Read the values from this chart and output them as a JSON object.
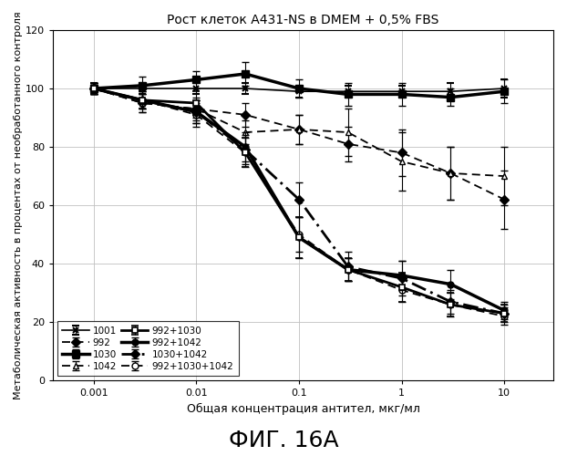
{
  "title": "Рост клеток A431-NS в DMEM + 0,5% FBS",
  "xlabel": "Общая концентрация антител, мкг/мл",
  "ylabel": "Метаболическая активность в процентах от необработанного контроля",
  "fig_label": "ФИГ. 16А",
  "xlim": [
    0.0004,
    30
  ],
  "ylim": [
    0,
    120
  ],
  "yticks": [
    0,
    20,
    40,
    60,
    80,
    100,
    120
  ],
  "xticks": [
    0.001,
    0.01,
    0.1,
    1,
    10
  ],
  "xtick_labels": [
    "0.001",
    "0.01",
    "0.1",
    "1",
    "10"
  ],
  "series": {
    "1001": {
      "x": [
        0.001,
        0.003,
        0.01,
        0.03,
        0.1,
        0.3,
        1,
        3,
        10
      ],
      "y": [
        100,
        100,
        100,
        100,
        99,
        99,
        99,
        99,
        100
      ],
      "yerr": [
        2,
        2,
        2,
        2,
        2,
        2,
        2,
        3,
        3
      ]
    },
    "1030": {
      "x": [
        0.001,
        0.003,
        0.01,
        0.03,
        0.1,
        0.3,
        1,
        3,
        10
      ],
      "y": [
        100,
        101,
        103,
        105,
        100,
        98,
        98,
        97,
        99
      ],
      "yerr": [
        2,
        3,
        3,
        4,
        3,
        4,
        4,
        3,
        4
      ]
    },
    "992+1030": {
      "x": [
        0.001,
        0.003,
        0.01,
        0.03,
        0.1,
        0.3,
        1,
        3,
        10
      ],
      "y": [
        100,
        96,
        95,
        78,
        49,
        38,
        32,
        26,
        23
      ],
      "yerr": [
        2,
        3,
        4,
        5,
        7,
        4,
        5,
        4,
        3
      ]
    },
    "1030+1042": {
      "x": [
        0.001,
        0.003,
        0.01,
        0.03,
        0.1,
        0.3,
        1,
        3,
        10
      ],
      "y": [
        100,
        96,
        92,
        79,
        62,
        39,
        35,
        27,
        23
      ],
      "yerr": [
        2,
        3,
        4,
        5,
        6,
        5,
        6,
        4,
        3
      ]
    },
    "992": {
      "x": [
        0.001,
        0.003,
        0.01,
        0.03,
        0.1,
        0.3,
        1,
        3,
        10
      ],
      "y": [
        100,
        95,
        93,
        91,
        86,
        81,
        78,
        71,
        62
      ],
      "yerr": [
        2,
        3,
        4,
        4,
        5,
        6,
        8,
        9,
        10
      ]
    },
    "1042": {
      "x": [
        0.001,
        0.003,
        0.01,
        0.03,
        0.1,
        0.3,
        1,
        3,
        10
      ],
      "y": [
        100,
        95,
        93,
        85,
        86,
        85,
        75,
        71,
        70
      ],
      "yerr": [
        2,
        3,
        3,
        4,
        5,
        8,
        10,
        9,
        10
      ]
    },
    "992+1042": {
      "x": [
        0.001,
        0.003,
        0.01,
        0.03,
        0.1,
        0.3,
        1,
        3,
        10
      ],
      "y": [
        100,
        96,
        92,
        80,
        49,
        38,
        36,
        33,
        24
      ],
      "yerr": [
        2,
        3,
        4,
        5,
        7,
        4,
        5,
        5,
        3
      ]
    },
    "992+1030+1042": {
      "x": [
        0.001,
        0.003,
        0.01,
        0.03,
        0.1,
        0.3,
        1,
        3,
        10
      ],
      "y": [
        100,
        96,
        91,
        78,
        50,
        38,
        31,
        26,
        22
      ],
      "yerr": [
        2,
        3,
        4,
        5,
        6,
        4,
        4,
        4,
        3
      ]
    }
  },
  "legend_left": [
    "1001",
    "1030",
    "992+1030",
    "1030+1042"
  ],
  "legend_right": [
    "992",
    "1042",
    "992+1042",
    "992+1030+1042"
  ],
  "background_color": "#ffffff",
  "grid_color": "#c0c0c0"
}
